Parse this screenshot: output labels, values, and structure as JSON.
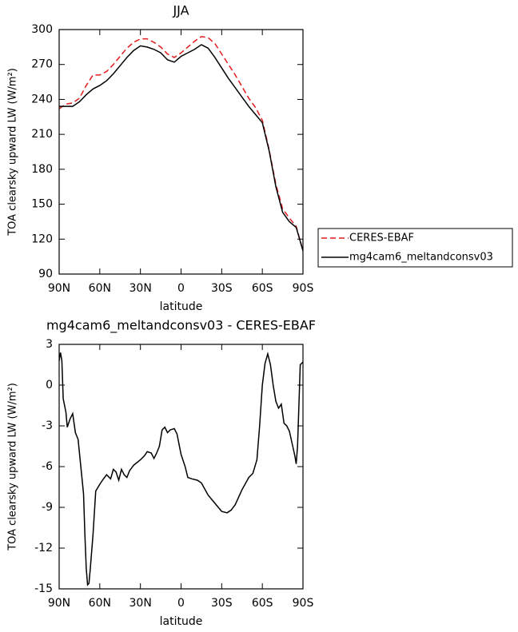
{
  "chart_data": [
    {
      "type": "line",
      "title": "JJA",
      "xlabel": "latitude",
      "ylabel": "TOA clearsky upward LW (W/m²)",
      "x": [
        90,
        85,
        80,
        75,
        70,
        65,
        60,
        55,
        50,
        45,
        40,
        35,
        30,
        25,
        20,
        15,
        10,
        5,
        0,
        -5,
        -10,
        -15,
        -20,
        -25,
        -30,
        -35,
        -40,
        -45,
        -50,
        -55,
        -60,
        -65,
        -70,
        -75,
        -80,
        -85,
        -90
      ],
      "series": [
        {
          "name": "CERES-EBAF",
          "color": "#e41a1c",
          "linestyle": "dashed",
          "values": [
            232,
            236,
            237,
            241,
            252,
            261,
            261,
            264,
            270,
            277,
            284,
            289,
            292,
            292,
            289,
            285,
            279,
            276,
            280,
            285,
            290,
            294,
            293,
            288,
            279,
            270,
            261,
            251,
            241,
            233,
            222,
            197,
            167,
            146,
            138,
            131,
            110
          ]
        },
        {
          "name": "mg4cam6_meltandconsv03",
          "color": "#000000",
          "linestyle": "solid",
          "values": [
            234,
            234,
            234,
            238,
            244,
            249,
            252,
            256,
            262,
            269,
            276,
            282,
            286,
            285,
            283,
            280,
            274,
            272,
            277,
            280,
            283,
            287,
            284,
            276,
            267,
            258,
            250,
            242,
            234,
            227,
            220,
            196,
            165,
            143,
            135,
            130,
            110
          ]
        }
      ],
      "xlim": [
        90,
        -90
      ],
      "xticks": [
        {
          "value": 90,
          "label": "90N"
        },
        {
          "value": 60,
          "label": "60N"
        },
        {
          "value": 30,
          "label": "30N"
        },
        0,
        {
          "value": -30,
          "label": "30S"
        },
        {
          "value": -60,
          "label": "60S"
        },
        {
          "value": -90,
          "label": "90S"
        }
      ],
      "ylim": [
        90,
        300
      ],
      "yticks": [
        90,
        120,
        150,
        180,
        210,
        240,
        270,
        300
      ],
      "legend": "right"
    },
    {
      "type": "line",
      "title": "mg4cam6_meltandconsv03 - CERES-EBAF",
      "xlabel": "latitude",
      "ylabel": "TOA clearsky upward LW (W/m²)",
      "x": [
        90,
        89,
        88,
        87,
        85,
        84,
        82,
        80,
        78,
        76,
        74,
        72,
        71,
        70,
        69,
        68,
        67,
        65,
        63,
        60,
        58,
        55,
        52,
        50,
        48,
        46,
        44,
        42,
        40,
        38,
        35,
        30,
        27,
        25,
        22,
        20,
        18,
        16,
        14,
        12,
        10,
        8,
        5,
        3,
        0,
        -3,
        -5,
        -8,
        -12,
        -15,
        -20,
        -25,
        -30,
        -34,
        -37,
        -40,
        -45,
        -50,
        -53,
        -56,
        -58,
        -60,
        -62,
        -64,
        -66,
        -68,
        -70,
        -72,
        -74,
        -76,
        -78,
        -80,
        -82,
        -84,
        -85,
        -86,
        -87,
        -88,
        -90
      ],
      "series": [
        {
          "name": "mg4cam6_meltandconsv03 - CERES-EBAF",
          "color": "#000000",
          "linestyle": "solid",
          "values": [
            1.8,
            2.4,
            1.8,
            -1,
            -2,
            -3.1,
            -2.5,
            -2.1,
            -3.5,
            -4,
            -6,
            -8,
            -11,
            -13.5,
            -14.7,
            -14.6,
            -13.5,
            -11,
            -7.8,
            -7.3,
            -7,
            -6.6,
            -6.9,
            -6.2,
            -6.4,
            -7,
            -6.2,
            -6.6,
            -6.8,
            -6.3,
            -5.9,
            -5.5,
            -5.2,
            -4.9,
            -5,
            -5.4,
            -5,
            -4.5,
            -3.3,
            -3.1,
            -3.5,
            -3.3,
            -3.2,
            -3.6,
            -5.1,
            -6,
            -6.8,
            -6.9,
            -7,
            -7.2,
            -8.1,
            -8.7,
            -9.3,
            -9.4,
            -9.2,
            -8.8,
            -7.7,
            -6.8,
            -6.5,
            -5.5,
            -3,
            0,
            1.6,
            2.3,
            1.5,
            0,
            -1.2,
            -1.7,
            -1.4,
            -2.8,
            -3,
            -3.4,
            -4.3,
            -5.2,
            -5.8,
            -4.5,
            -1.5,
            1.5,
            1.7
          ]
        }
      ],
      "xlim": [
        90,
        -90
      ],
      "xticks": [
        {
          "value": 90,
          "label": "90N"
        },
        {
          "value": 60,
          "label": "60N"
        },
        {
          "value": 30,
          "label": "30N"
        },
        0,
        {
          "value": -30,
          "label": "30S"
        },
        {
          "value": -60,
          "label": "60S"
        },
        {
          "value": -90,
          "label": "90S"
        }
      ],
      "ylim": [
        -15,
        3
      ],
      "yticks": [
        -15,
        -12,
        -9,
        -6,
        -3,
        0,
        3
      ]
    }
  ]
}
